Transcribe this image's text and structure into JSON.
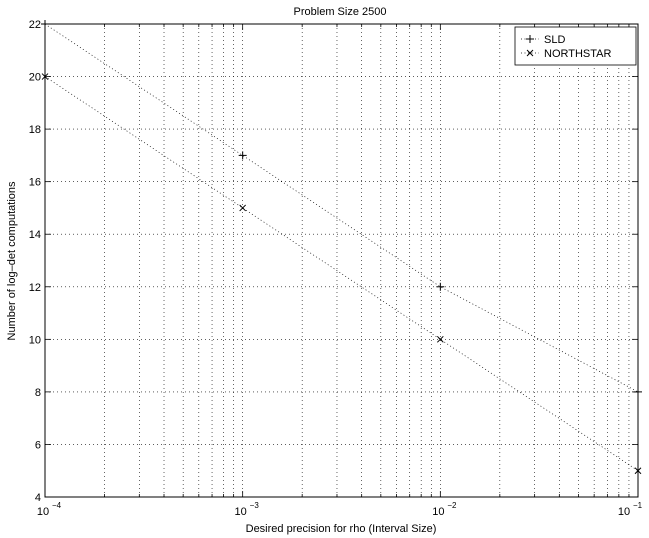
{
  "chart_data": {
    "type": "line",
    "title": "Problem Size 2500",
    "xlabel": "Desired precision for rho (Interval Size)",
    "ylabel": "Number of log–det computations",
    "xscale": "log",
    "xlim": [
      0.0001,
      0.1
    ],
    "ylim": [
      4,
      22
    ],
    "grid": true,
    "legend_position": "top-right",
    "x_ticks": [
      {
        "value": 0.0001,
        "base": "10",
        "exp": "−4"
      },
      {
        "value": 0.001,
        "base": "10",
        "exp": "−3"
      },
      {
        "value": 0.01,
        "base": "10",
        "exp": "−2"
      },
      {
        "value": 0.1,
        "base": "10",
        "exp": "−1"
      }
    ],
    "y_ticks": [
      "4",
      "6",
      "8",
      "10",
      "12",
      "14",
      "16",
      "18",
      "20",
      "22"
    ],
    "series": [
      {
        "name": "SLD",
        "marker": "+",
        "x": [
          0.0001,
          0.001,
          0.01,
          0.1
        ],
        "y": [
          22,
          17,
          12,
          8
        ]
      },
      {
        "name": "NORTHSTAR",
        "marker": "x",
        "x": [
          0.0001,
          0.001,
          0.01,
          0.1
        ],
        "y": [
          20,
          15,
          10,
          5
        ]
      }
    ]
  }
}
